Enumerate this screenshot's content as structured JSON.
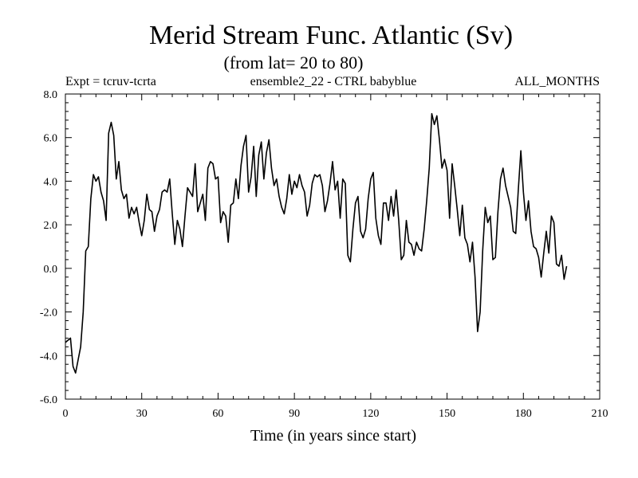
{
  "chart_data": {
    "type": "line",
    "title": "Merid Stream Func. Atlantic (Sv)",
    "subtitle": "(from lat= 20 to 80)",
    "header_left": "Expt = tcruv-tcrta",
    "header_center": "ensemble2_22 - CTRL babyblue",
    "header_right": "ALL_MONTHS",
    "xlabel": "Time (in years since start)",
    "ylabel": "",
    "xlim": [
      0,
      210
    ],
    "ylim": [
      -6,
      8
    ],
    "xticks": [
      0,
      30,
      60,
      90,
      120,
      150,
      180,
      210
    ],
    "yticks": [
      -6,
      -4,
      -2,
      0,
      2,
      4,
      6,
      8
    ],
    "xtick_labels": [
      "0",
      "30",
      "60",
      "90",
      "120",
      "150",
      "180",
      "210"
    ],
    "ytick_labels": [
      "-6.0",
      "-4.0",
      "-2.0",
      "0.0",
      "2.0",
      "4.0",
      "6.0",
      "8.0"
    ],
    "x_minor_step": 6,
    "y_minor_step": 0.4,
    "grid": false,
    "color": "#000000",
    "series": [
      {
        "values": [
          -3.4,
          -3.3,
          -3.2,
          -4.5,
          -4.8,
          -4.2,
          -3.6,
          -2.0,
          0.8,
          1.0,
          3.2,
          4.3,
          4.0,
          4.2,
          3.5,
          3.1,
          2.2,
          6.2,
          6.7,
          6.1,
          4.1,
          4.9,
          3.6,
          3.2,
          3.4,
          2.3,
          2.8,
          2.5,
          2.8,
          2.1,
          1.5,
          2.2,
          3.4,
          2.7,
          2.6,
          1.7,
          2.4,
          2.7,
          3.5,
          3.6,
          3.5,
          4.1,
          2.5,
          1.1,
          2.2,
          1.8,
          1.0,
          2.4,
          3.7,
          3.5,
          3.3,
          4.8,
          2.6,
          3.0,
          3.4,
          2.2,
          4.6,
          4.9,
          4.8,
          4.1,
          4.2,
          2.1,
          2.6,
          2.4,
          1.2,
          2.9,
          3.0,
          4.1,
          3.2,
          4.7,
          5.6,
          6.1,
          3.5,
          4.2,
          5.6,
          3.3,
          5.2,
          5.8,
          4.1,
          5.3,
          5.9,
          4.6,
          3.8,
          4.1,
          3.3,
          2.8,
          2.5,
          3.2,
          4.3,
          3.4,
          4.0,
          3.7,
          4.3,
          3.8,
          3.5,
          2.4,
          2.9,
          3.9,
          4.3,
          4.2,
          4.3,
          3.8,
          2.6,
          3.1,
          3.9,
          4.9,
          3.6,
          4.0,
          2.3,
          4.1,
          3.9,
          0.6,
          0.3,
          1.8,
          3.0,
          3.3,
          1.7,
          1.4,
          1.8,
          3.2,
          4.1,
          4.4,
          2.3,
          1.5,
          1.1,
          3.0,
          3.0,
          2.2,
          3.3,
          2.4,
          3.6,
          2.2,
          0.4,
          0.6,
          2.2,
          1.2,
          1.1,
          0.6,
          1.2,
          0.9,
          0.8,
          1.8,
          3.1,
          4.6,
          7.1,
          6.6,
          7.0,
          5.9,
          4.6,
          5.0,
          4.5,
          2.3,
          4.8,
          3.8,
          2.7,
          1.5,
          2.9,
          1.4,
          1.1,
          0.3,
          1.2,
          -0.4,
          -2.9,
          -2.0,
          0.8,
          2.8,
          2.1,
          2.4,
          0.4,
          0.5,
          2.6,
          4.1,
          4.6,
          3.8,
          3.3,
          2.8,
          1.7,
          1.6,
          3.6,
          5.4,
          3.5,
          2.2,
          3.1,
          1.7,
          1.0,
          0.9,
          0.5,
          -0.4,
          0.7,
          1.7,
          0.7,
          2.4,
          2.1,
          0.2,
          0.1,
          0.6,
          -0.5,
          0.1
        ]
      }
    ]
  }
}
